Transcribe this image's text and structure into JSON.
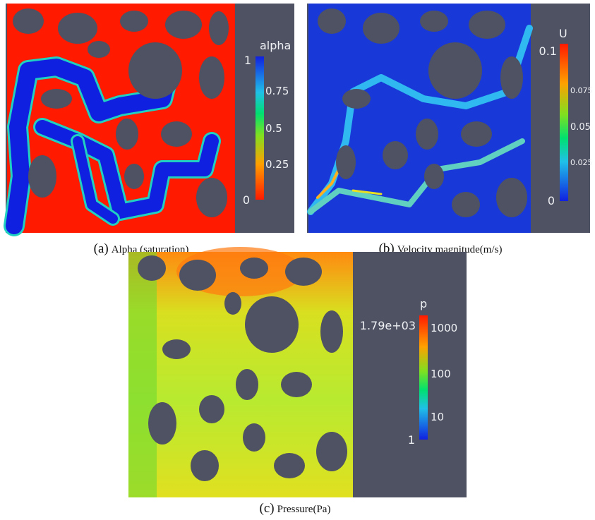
{
  "panels": [
    {
      "label": "(a)",
      "caption": "Alpha (saturation)",
      "colorbar": {
        "title": "alpha",
        "ticks": [
          "1",
          "0.75",
          "0.5",
          "0.25",
          "0"
        ]
      }
    },
    {
      "label": "(b)",
      "caption": "Velocity magnitude(m/s)",
      "colorbar": {
        "title": "U",
        "ticks": [
          "0.1",
          "0.075",
          "0.05",
          "0.025",
          "0"
        ]
      }
    },
    {
      "label": "(c)",
      "caption": "Pressure(Pa)",
      "colorbar": {
        "title": "p",
        "ticks": [
          "1.79e+03",
          "1000",
          "100",
          "10",
          "1"
        ]
      }
    }
  ]
}
